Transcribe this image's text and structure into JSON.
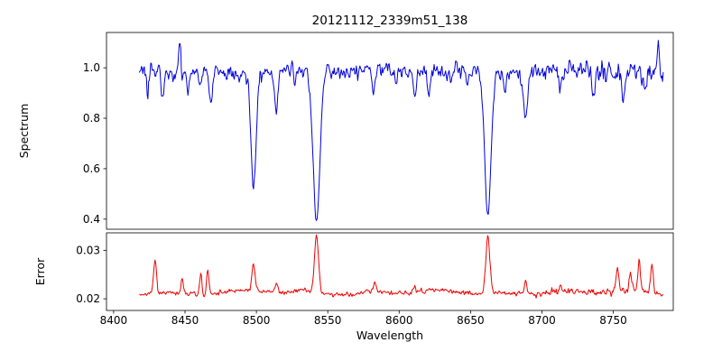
{
  "chart_data": {
    "type": "line",
    "title": "20121112_2339m51_138",
    "xlabel": "Wavelength",
    "xlim": [
      8395,
      8792
    ],
    "x_start": 8418,
    "x_end": 8785,
    "x_step": 0.5,
    "xtick_values": [
      8400,
      8450,
      8500,
      8550,
      8600,
      8650,
      8700,
      8750
    ],
    "xtick_labels": [
      "8400",
      "8450",
      "8500",
      "8550",
      "8600",
      "8650",
      "8700",
      "8750"
    ],
    "legend": "none",
    "grid": false,
    "panels": [
      {
        "name": "spectrum",
        "ylabel": "Spectrum",
        "color": "#0000dd",
        "ylim": [
          0.36,
          1.14
        ],
        "ytick_values": [
          0.4,
          0.6,
          0.8,
          1.0
        ],
        "ytick_labels": [
          "0.4",
          "0.6",
          "0.8",
          "1.0"
        ],
        "continuum": 0.985,
        "noise_sigma": 0.017,
        "seed": 12345,
        "absorption_lines": [
          {
            "center": 8424.0,
            "depth": 0.08,
            "width": 0.8
          },
          {
            "center": 8434.0,
            "depth": 0.1,
            "width": 0.9
          },
          {
            "center": 8452.0,
            "depth": 0.09,
            "width": 0.8
          },
          {
            "center": 8460.5,
            "depth": 0.07,
            "width": 0.7
          },
          {
            "center": 8468.0,
            "depth": 0.13,
            "width": 1.0
          },
          {
            "center": 8498.0,
            "depth": 0.45,
            "width": 1.8
          },
          {
            "center": 8514.0,
            "depth": 0.15,
            "width": 1.2
          },
          {
            "center": 8527.0,
            "depth": 0.07,
            "width": 0.8
          },
          {
            "center": 8542.1,
            "depth": 0.6,
            "width": 2.4
          },
          {
            "center": 8582.0,
            "depth": 0.1,
            "width": 1.0
          },
          {
            "center": 8598.0,
            "depth": 0.06,
            "width": 0.8
          },
          {
            "center": 8611.0,
            "depth": 0.09,
            "width": 1.0
          },
          {
            "center": 8621.0,
            "depth": 0.07,
            "width": 0.8
          },
          {
            "center": 8648.0,
            "depth": 0.06,
            "width": 0.8
          },
          {
            "center": 8662.1,
            "depth": 0.57,
            "width": 2.2
          },
          {
            "center": 8674.0,
            "depth": 0.08,
            "width": 0.9
          },
          {
            "center": 8688.6,
            "depth": 0.19,
            "width": 1.6
          },
          {
            "center": 8713.0,
            "depth": 0.08,
            "width": 0.9
          },
          {
            "center": 8736.0,
            "depth": 0.1,
            "width": 1.0
          },
          {
            "center": 8757.0,
            "depth": 0.08,
            "width": 0.9
          },
          {
            "center": 8772.0,
            "depth": 0.09,
            "width": 0.9
          }
        ],
        "emission_spikes": [
          {
            "center": 8446.0,
            "height": 0.125,
            "width": 0.7
          },
          {
            "center": 8640.0,
            "height": 0.045,
            "width": 0.6
          },
          {
            "center": 8781.5,
            "height": 0.11,
            "width": 0.7
          }
        ]
      },
      {
        "name": "error",
        "ylabel": "Error",
        "color": "#ee0000",
        "ylim": [
          0.0176,
          0.0336
        ],
        "ytick_values": [
          0.02,
          0.03
        ],
        "ytick_labels": [
          "0.02",
          "0.03"
        ],
        "baseline": 0.0213,
        "noise_sigma": 0.00032,
        "seed": 2339,
        "spikes": [
          {
            "center": 8429.0,
            "height": 0.0072,
            "width": 1.0
          },
          {
            "center": 8448.0,
            "height": 0.0028,
            "width": 0.8
          },
          {
            "center": 8461.0,
            "height": 0.0045,
            "width": 0.8
          },
          {
            "center": 8466.0,
            "height": 0.0048,
            "width": 0.8
          },
          {
            "center": 8498.0,
            "height": 0.0058,
            "width": 1.1
          },
          {
            "center": 8514.0,
            "height": 0.002,
            "width": 0.9
          },
          {
            "center": 8542.1,
            "height": 0.0118,
            "width": 1.4
          },
          {
            "center": 8583.0,
            "height": 0.0018,
            "width": 0.9
          },
          {
            "center": 8611.0,
            "height": 0.0015,
            "width": 0.8
          },
          {
            "center": 8662.1,
            "height": 0.0116,
            "width": 1.4
          },
          {
            "center": 8688.6,
            "height": 0.0026,
            "width": 1.0
          },
          {
            "center": 8713.0,
            "height": 0.0015,
            "width": 0.8
          },
          {
            "center": 8753.0,
            "height": 0.0048,
            "width": 1.0
          },
          {
            "center": 8762.0,
            "height": 0.004,
            "width": 0.9
          },
          {
            "center": 8768.0,
            "height": 0.0066,
            "width": 0.9
          },
          {
            "center": 8777.0,
            "height": 0.0058,
            "width": 0.9
          }
        ]
      }
    ]
  }
}
